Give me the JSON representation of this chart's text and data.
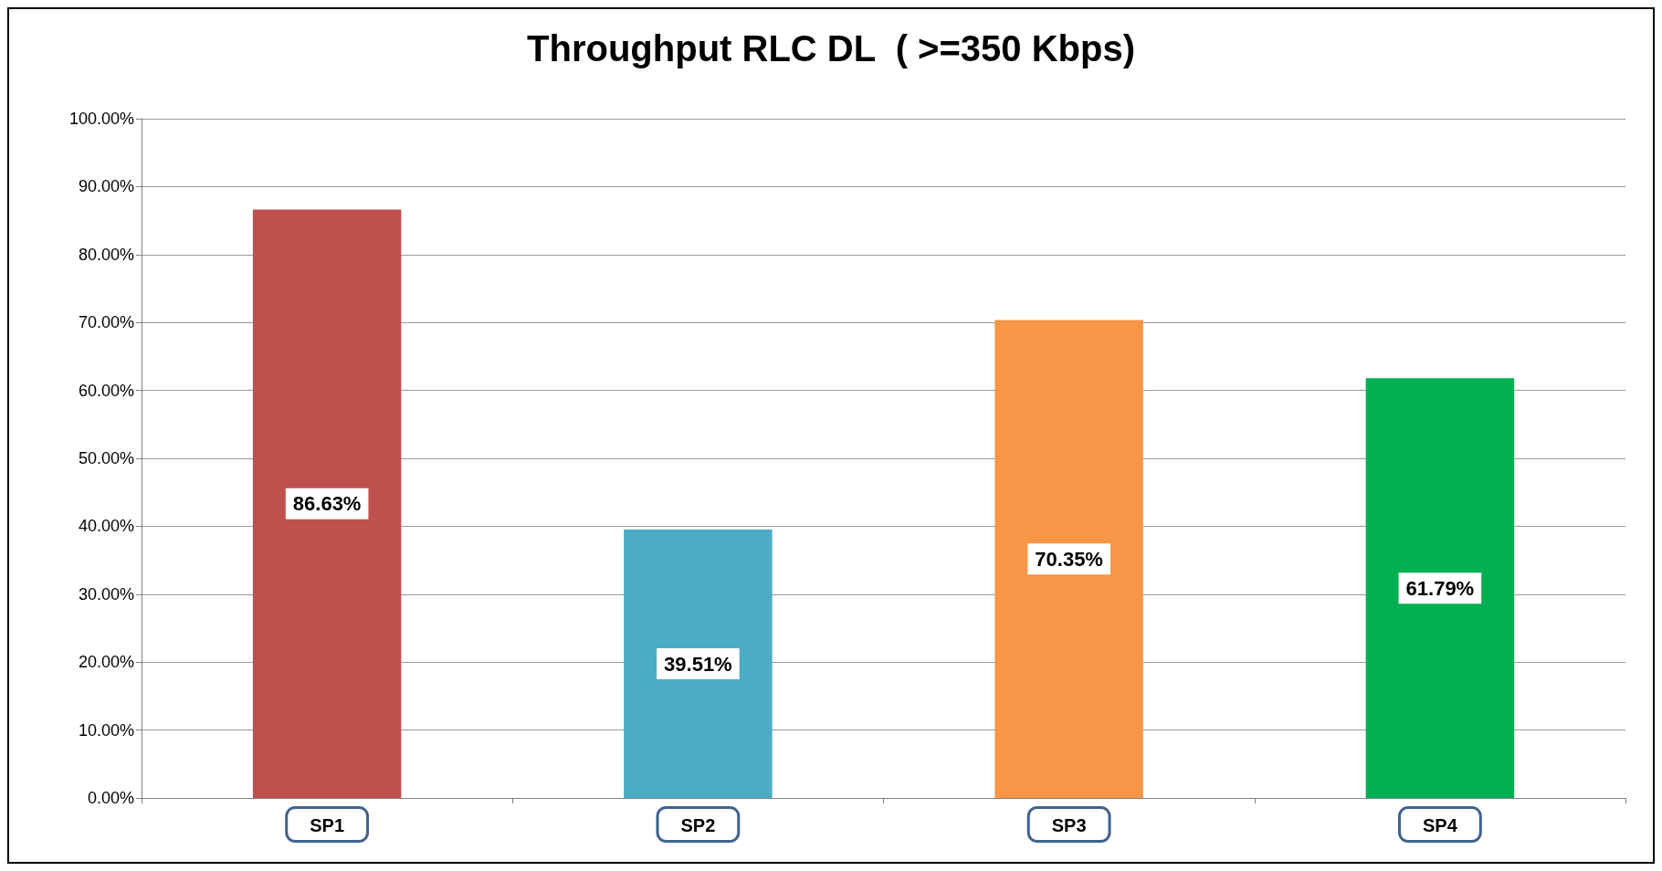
{
  "chart_data": {
    "type": "bar",
    "title": "Throughput RLC DL  ( >=350 Kbps)",
    "categories": [
      "SP1",
      "SP2",
      "SP3",
      "SP4"
    ],
    "values": [
      86.63,
      39.51,
      70.35,
      61.79
    ],
    "colors": [
      "#c0504d",
      "#4bacc6",
      "#f79646",
      "#00b050"
    ],
    "value_labels": [
      "86.63%",
      "39.51%",
      "70.35%",
      "61.79%"
    ],
    "ylim": [
      0,
      100
    ],
    "yticks": [
      {
        "value": 0,
        "label": "0.00%"
      },
      {
        "value": 10,
        "label": "10.00%"
      },
      {
        "value": 20,
        "label": "20.00%"
      },
      {
        "value": 30,
        "label": "30.00%"
      },
      {
        "value": 40,
        "label": "40.00%"
      },
      {
        "value": 50,
        "label": "50.00%"
      },
      {
        "value": 60,
        "label": "60.00%"
      },
      {
        "value": 70,
        "label": "70.00%"
      },
      {
        "value": 80,
        "label": "80.00%"
      },
      {
        "value": 90,
        "label": "90.00%"
      },
      {
        "value": 100,
        "label": "100.00%"
      }
    ],
    "grid": "y"
  }
}
